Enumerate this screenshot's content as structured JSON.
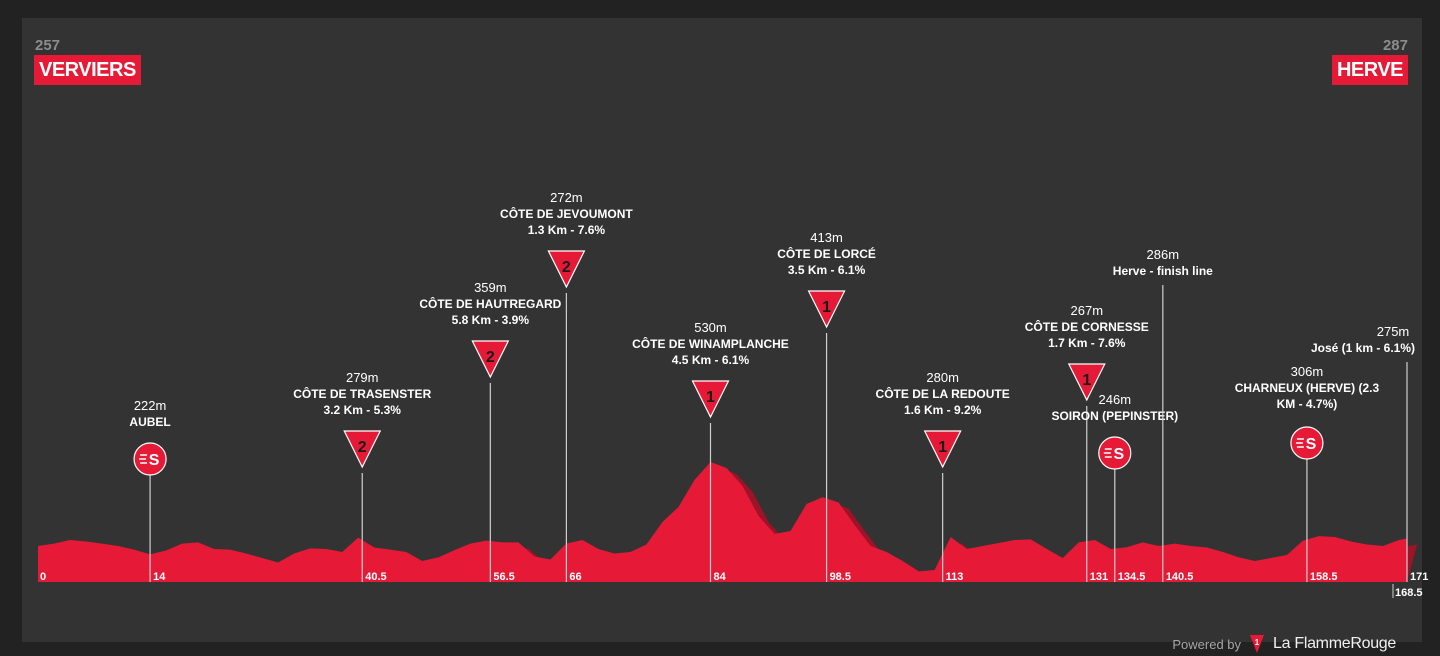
{
  "header": {
    "start_altitude": "257",
    "start_city": "VERVIERS",
    "finish_altitude": "287",
    "finish_city": "HERVE"
  },
  "footer": {
    "powered_by": "Powered by",
    "brand": "La FlammeRouge"
  },
  "colors": {
    "background": "#333333",
    "profile_fill": "#e61a37",
    "profile_shadow": "#9e1327",
    "marker_line": "#cfcfcf",
    "text": "#ffffff"
  },
  "chart_data": {
    "type": "area",
    "title": "",
    "xlabel": "",
    "ylabel": "",
    "x_unit": "km",
    "y_unit": "m",
    "distance_range": [
      0,
      171
    ],
    "profile": {
      "x": [
        0,
        2,
        4,
        6,
        8,
        10,
        12,
        14,
        16,
        18,
        20,
        22,
        24,
        26,
        28,
        30,
        32,
        34,
        36,
        38,
        40,
        42,
        44,
        46,
        48,
        50,
        52,
        54,
        56,
        58,
        60,
        62,
        64,
        66,
        68,
        70,
        72,
        74,
        76,
        78,
        80,
        82,
        84,
        86,
        88,
        90,
        92,
        94,
        96,
        98,
        100,
        102,
        104,
        106,
        108,
        110,
        112,
        114,
        116,
        118,
        120,
        122,
        124,
        126,
        128,
        130,
        132,
        134,
        136,
        138,
        140,
        142,
        144,
        146,
        148,
        150,
        152,
        154,
        156,
        158,
        160,
        162,
        164,
        166,
        168,
        170,
        171
      ],
      "y": [
        250,
        258,
        270,
        265,
        258,
        250,
        238,
        222,
        235,
        258,
        262,
        240,
        238,
        225,
        210,
        195,
        225,
        242,
        240,
        230,
        278,
        245,
        238,
        230,
        200,
        212,
        236,
        258,
        268,
        262,
        262,
        215,
        205,
        258,
        270,
        240,
        225,
        230,
        255,
        330,
        380,
        470,
        530,
        510,
        450,
        350,
        290,
        300,
        390,
        413,
        395,
        320,
        250,
        230,
        200,
        165,
        170,
        280,
        240,
        250,
        260,
        270,
        272,
        240,
        210,
        262,
        270,
        240,
        246,
        262,
        250,
        258,
        250,
        245,
        230,
        212,
        200,
        210,
        220,
        268,
        283,
        280,
        265,
        255,
        250,
        270,
        275
      ]
    },
    "markers": [
      {
        "km": 0,
        "label": "0"
      },
      {
        "km": 14,
        "label": "14",
        "name": "AUBEL",
        "alt": "222m",
        "icon": "sprint",
        "detail": ""
      },
      {
        "km": 40.5,
        "label": "40.5",
        "name": "CÔTE DE TRASENSTER",
        "alt": "279m",
        "icon": "climb",
        "cat": "2",
        "detail": "3.2 Km - 5.3%"
      },
      {
        "km": 56.5,
        "label": "56.5",
        "name": "CÔTE DE HAUTREGARD",
        "alt": "359m",
        "icon": "climb",
        "cat": "2",
        "detail": "5.8 Km - 3.9%"
      },
      {
        "km": 66,
        "label": "66",
        "name": "CÔTE DE JEVOUMONT",
        "alt": "272m",
        "icon": "climb",
        "cat": "2",
        "detail": "1.3 Km - 7.6%"
      },
      {
        "km": 84,
        "label": "84",
        "name": "CÔTE DE WINAMPLANCHE",
        "alt": "530m",
        "icon": "climb",
        "cat": "1",
        "detail": "4.5 Km - 6.1%"
      },
      {
        "km": 98.5,
        "label": "98.5",
        "name": "CÔTE DE LORCÉ",
        "alt": "413m",
        "icon": "climb",
        "cat": "1",
        "detail": "3.5 Km - 6.1%"
      },
      {
        "km": 113,
        "label": "113",
        "name": "CÔTE DE LA REDOUTE",
        "alt": "280m",
        "icon": "climb",
        "cat": "1",
        "detail": "1.6 Km - 9.2%"
      },
      {
        "km": 131,
        "label": "131",
        "name": "CÔTE DE CORNESSE",
        "alt": "267m",
        "icon": "climb",
        "cat": "1",
        "detail": "1.7 Km - 7.6%"
      },
      {
        "km": 134.5,
        "label": "134.5",
        "name": "SOIRON (PEPINSTER)",
        "alt": "246m",
        "icon": "sprint",
        "detail": ""
      },
      {
        "km": 140.5,
        "label": "140.5",
        "name": "Herve - finish line",
        "alt": "286m",
        "icon": "none",
        "detail": ""
      },
      {
        "km": 158.5,
        "label": "158.5",
        "name": "CHARNEUX (HERVE) (2.3 KM - 4.7%)",
        "alt": "306m",
        "icon": "sprint",
        "detail": ""
      },
      {
        "km": 171,
        "label": "171",
        "name": "José (1 km - 6.1%)",
        "alt": "275m",
        "icon": "none",
        "detail": ""
      },
      {
        "km": 168.5,
        "label": "168.5"
      }
    ]
  }
}
